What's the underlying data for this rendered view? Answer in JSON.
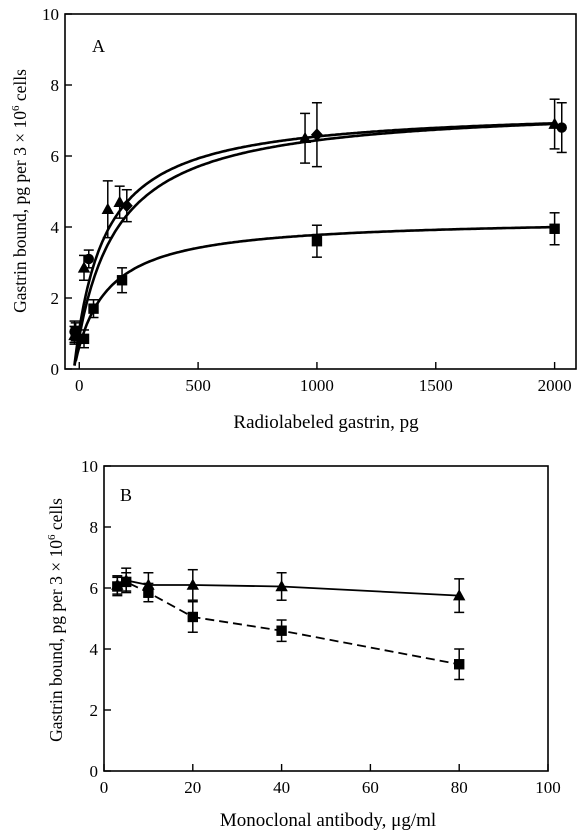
{
  "chart_data": [
    {
      "panel_label": "A",
      "type": "line",
      "xlabel": "Radiolabeled gastrin, pg",
      "ylabel": "Gastrin bound, pg per 3 × 10",
      "ylabel_sup": "6",
      "ylabel_tail": " cells",
      "xlim": [
        -60,
        2090
      ],
      "ylim": [
        0,
        10
      ],
      "xticks": [
        0,
        500,
        1000,
        1500,
        2000
      ],
      "yticks": [
        0,
        2,
        4,
        6,
        8,
        10
      ],
      "grid": false,
      "series": [
        {
          "marker": "triangle",
          "x": [
            -20,
            20,
            120,
            170,
            950,
            2000
          ],
          "y": [
            0.95,
            2.85,
            4.5,
            4.7,
            6.5,
            6.9
          ],
          "err": [
            0.25,
            0.35,
            0.8,
            0.45,
            0.7,
            0.7
          ],
          "curve": {
            "bmax": 7.35,
            "kd": 125,
            "x0": -22,
            "from": -20
          }
        },
        {
          "marker": "diamond",
          "x": [
            200,
            1000
          ],
          "y": [
            4.6,
            6.6
          ],
          "err": [
            0.45,
            0.9
          ],
          "curve": null
        },
        {
          "marker": "circle",
          "x": [
            -20,
            40,
            2030
          ],
          "y": [
            1.05,
            3.1,
            6.8
          ],
          "err": [
            0.3,
            0.25,
            0.7
          ],
          "curve": {
            "bmax": 7.45,
            "kd": 160,
            "x0": -22,
            "from": -20
          }
        },
        {
          "marker": "square",
          "x": [
            -15,
            20,
            60,
            180,
            1000,
            2000
          ],
          "y": [
            1.05,
            0.85,
            1.7,
            2.5,
            3.6,
            3.95
          ],
          "err": [
            0.25,
            0.25,
            0.25,
            0.35,
            0.45,
            0.45
          ],
          "curve": {
            "bmax": 4.25,
            "kd": 128,
            "x0": -22,
            "from": -15
          }
        }
      ]
    },
    {
      "panel_label": "B",
      "type": "line",
      "xlabel": "Monoclonal antibody, μg/ml",
      "ylabel": "Gastrin bound, pg per 3 × 10",
      "ylabel_sup": "6",
      "ylabel_tail": " cells",
      "xlim": [
        0,
        100
      ],
      "ylim": [
        0,
        10
      ],
      "xticks": [
        0,
        20,
        40,
        60,
        80,
        100
      ],
      "yticks": [
        0,
        2,
        4,
        6,
        8,
        10
      ],
      "grid": false,
      "series": [
        {
          "marker": "triangle",
          "line": "solid",
          "x": [
            3,
            5,
            10,
            20,
            40,
            80
          ],
          "y": [
            6.1,
            6.25,
            6.1,
            6.1,
            6.05,
            5.75
          ],
          "err": [
            0.3,
            0.4,
            0.4,
            0.5,
            0.45,
            0.55
          ]
        },
        {
          "marker": "square",
          "line": "dashed",
          "x": [
            3,
            5,
            10,
            20,
            40,
            80
          ],
          "y": [
            6.05,
            6.2,
            5.85,
            5.05,
            4.6,
            3.5
          ],
          "err": [
            0.3,
            0.3,
            0.3,
            0.5,
            0.35,
            0.5
          ]
        }
      ]
    }
  ]
}
